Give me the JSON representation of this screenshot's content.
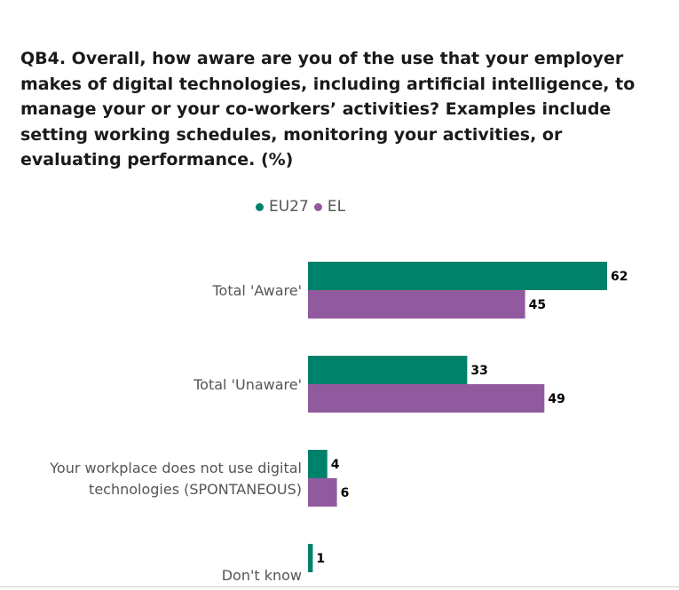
{
  "title": "QB4. Overall, how aware are you of the use that your employer makes of digital technologies, including artificial intelligence, to manage your or your co-workers’ activities? Examples include setting working schedules, monitoring your activities, or evaluating performance. (%)",
  "colors": {
    "eu27": "#00826a",
    "el": "#925a9e"
  },
  "chart_data": {
    "type": "bar",
    "orientation": "horizontal",
    "categories": [
      [
        "Total 'Aware'"
      ],
      [
        "Total 'Unaware'"
      ],
      [
        "Your workplace does not use digital",
        "technologies (SPONTANEOUS)"
      ],
      [
        "Don't know"
      ]
    ],
    "series": [
      {
        "name": "EU27",
        "color": "#00826a",
        "values": [
          62,
          33,
          4,
          1
        ]
      },
      {
        "name": "EL",
        "color": "#925a9e",
        "values": [
          45,
          49,
          6,
          null
        ]
      }
    ],
    "xlim": [
      0,
      62
    ],
    "grid": false,
    "legend_position": "top"
  }
}
